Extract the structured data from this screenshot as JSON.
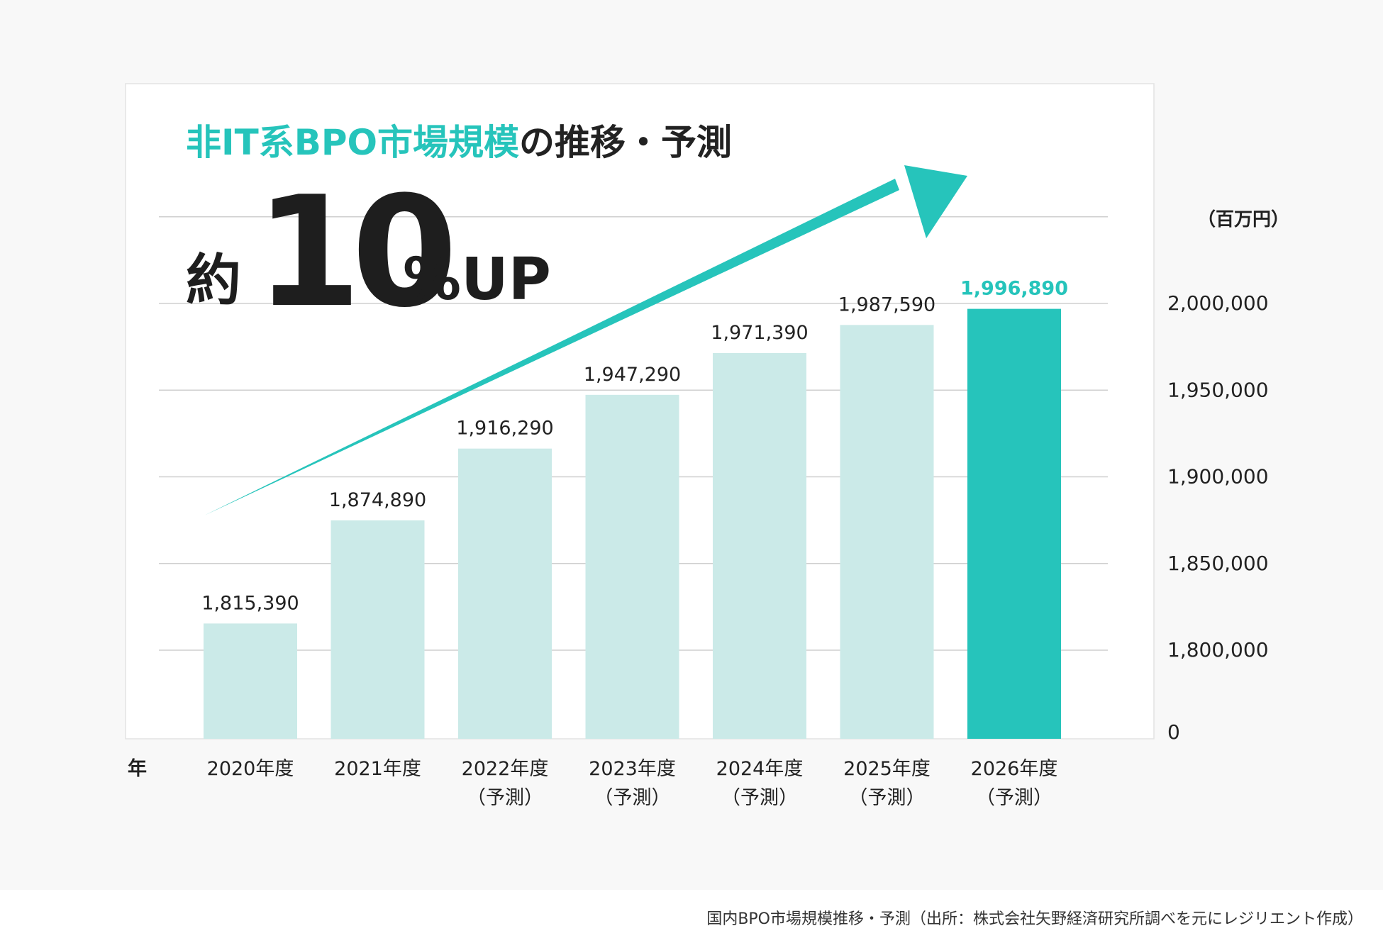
{
  "colors": {
    "accent": "#26c4bb",
    "bar": "#cbeae8",
    "highlight_bar": "#26c4bb",
    "text": "#222222",
    "grid": "#cfcfcf"
  },
  "headline": {
    "title_accent": "非IT系BPO市場規模",
    "title_rest": "の推移・予測",
    "prefix": "約",
    "number": "10",
    "suffix": "%UP"
  },
  "chart_data": {
    "type": "bar",
    "unit": "（百万円）",
    "x_axis_label": "年",
    "categories": [
      [
        "2020年度",
        ""
      ],
      [
        "2021年度",
        ""
      ],
      [
        "2022年度",
        "（予測）"
      ],
      [
        "2023年度",
        "（予測）"
      ],
      [
        "2024年度",
        "（予測）"
      ],
      [
        "2025年度",
        "（予測）"
      ],
      [
        "2026年度",
        "（予測）"
      ]
    ],
    "values": [
      1815390,
      1874890,
      1916290,
      1947290,
      1971390,
      1987590,
      1996890
    ],
    "value_labels": [
      "1,815,390",
      "1,874,890",
      "1,916,290",
      "1,947,290",
      "1,971,390",
      "1,987,590",
      "1,996,890"
    ],
    "highlight_index": 6,
    "y_ticks": [
      {
        "value": 1800000,
        "label": "1,800,000"
      },
      {
        "value": 1850000,
        "label": "1,850,000"
      },
      {
        "value": 1900000,
        "label": "1,900,000"
      },
      {
        "value": 1950000,
        "label": "1,950,000"
      },
      {
        "value": 2000000,
        "label": "2,000,000"
      }
    ],
    "y_zero_label": "0",
    "y_axis_broken": true,
    "ylim": [
      1750000,
      2050000
    ],
    "grid": true
  },
  "caption": "国内BPO市場規模推移・予測（出所：株式会社矢野経済研究所調べを元にレジリエント作成）"
}
